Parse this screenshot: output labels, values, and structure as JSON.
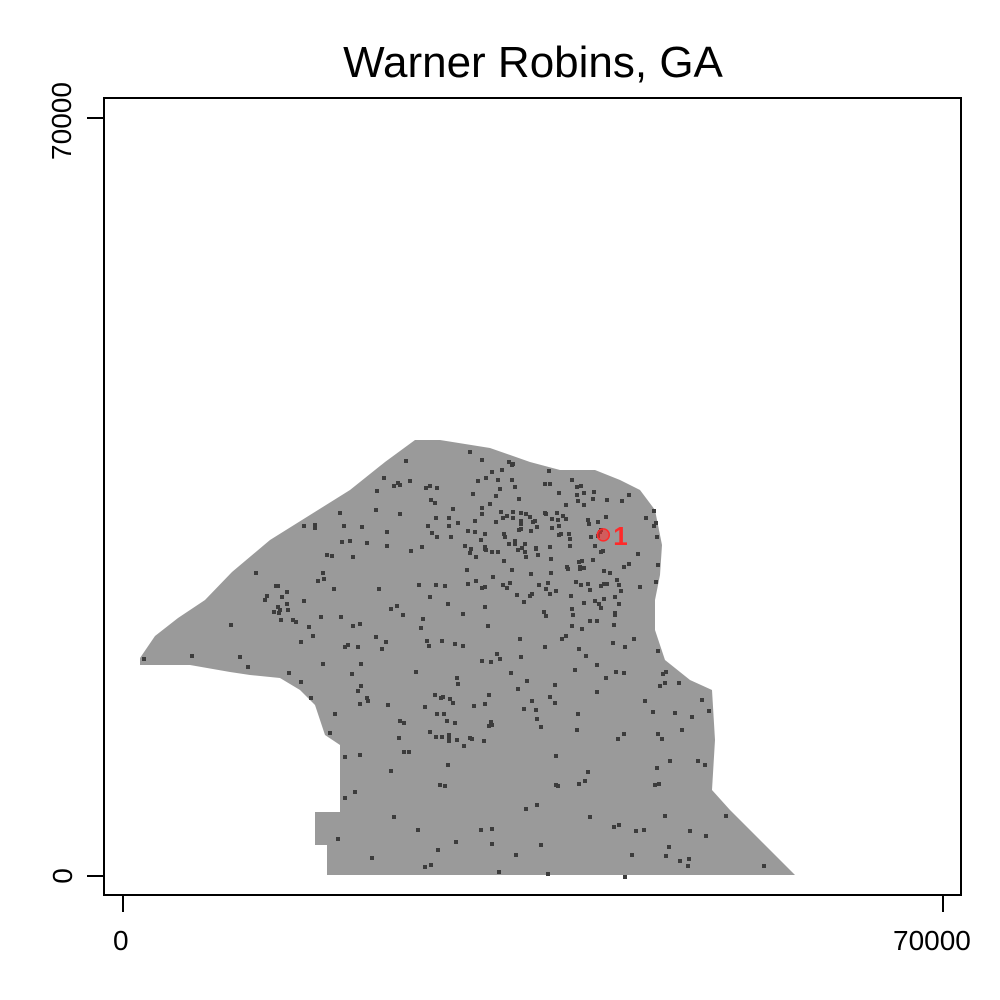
{
  "title": "Warner Robins, GA",
  "axes": {
    "x": {
      "min": 0,
      "max": 70000,
      "ticks": [
        "0",
        "70000"
      ]
    },
    "y": {
      "min": 0,
      "max": 70000,
      "ticks": [
        "0",
        "70000"
      ]
    }
  },
  "colors": {
    "city_area": "#9a9a9a",
    "development": "#3c3c3c",
    "marker": "#ff2a2a"
  },
  "markers": [
    {
      "label": "1",
      "x": 41000,
      "y": 31500
    }
  ]
}
